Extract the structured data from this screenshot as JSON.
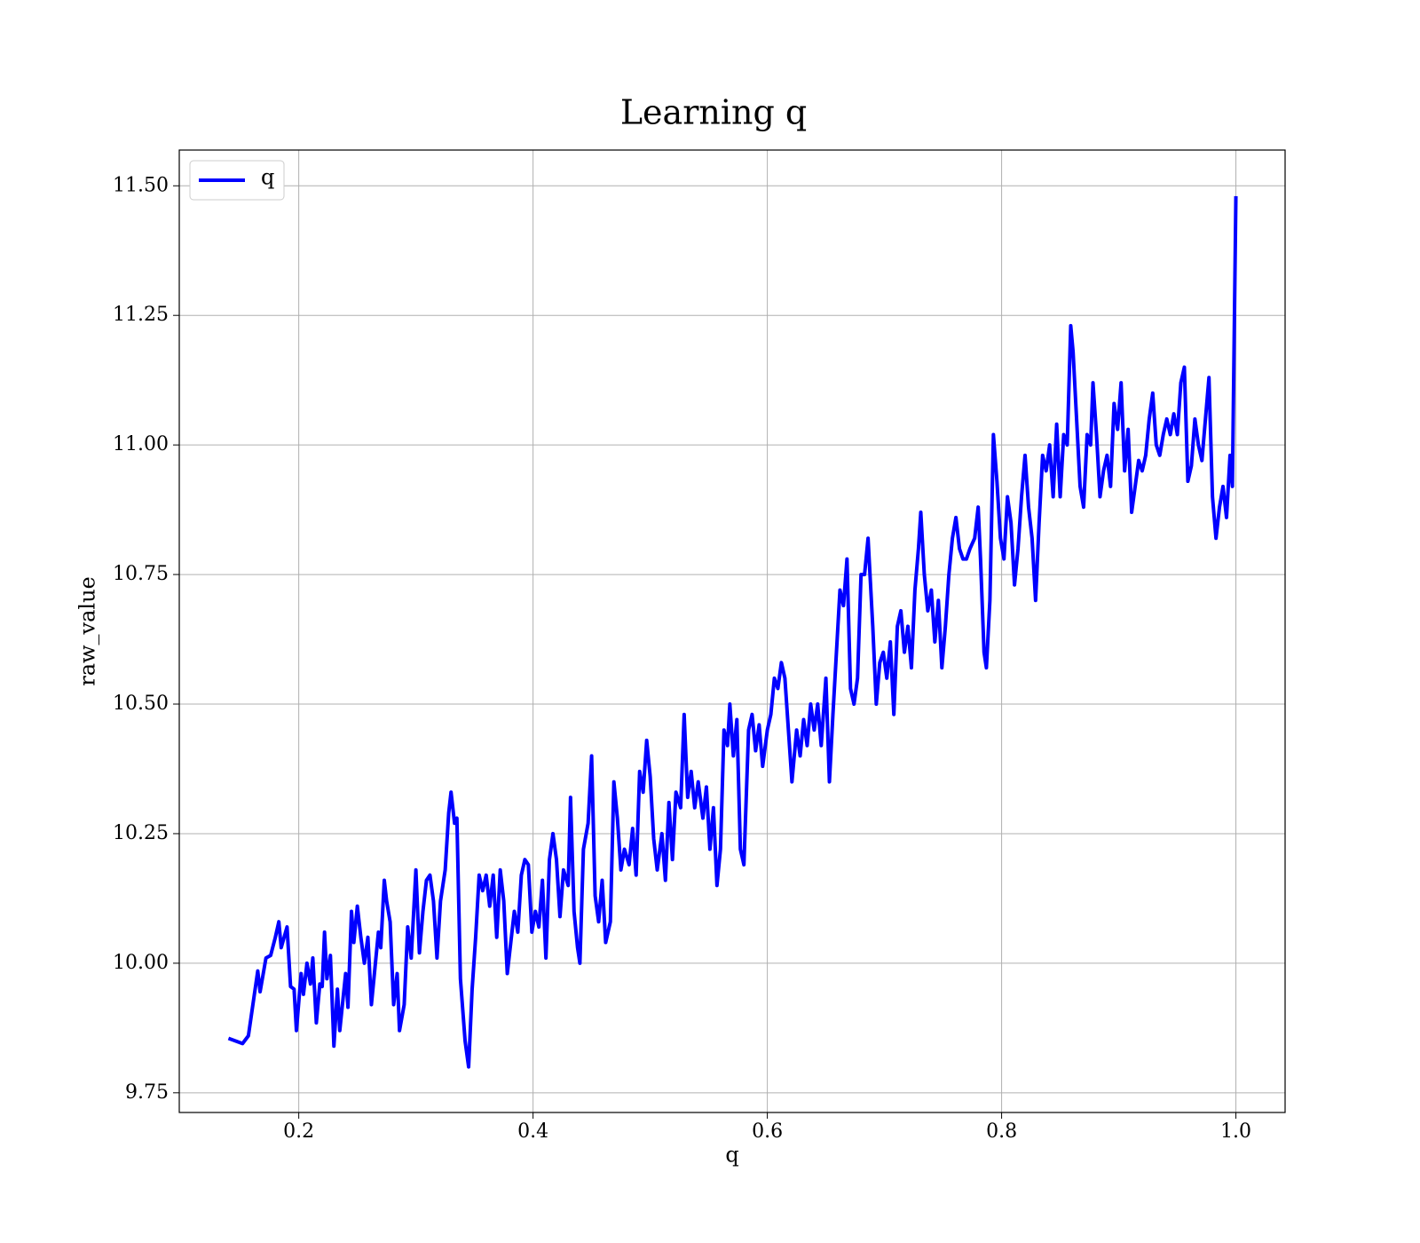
{
  "chart_data": {
    "type": "line",
    "title": "Learning q",
    "x_label": "q",
    "y_label": "raw_value",
    "xlim": [
      0.098,
      1.042
    ],
    "ylim": [
      9.712,
      11.569
    ],
    "xticks": [
      0.2,
      0.4,
      0.6,
      0.8,
      {
        "value": 1,
        "label": "1.0"
      }
    ],
    "yticks": [
      9.75,
      {
        "value": 10,
        "label": "10.00"
      },
      10.25,
      {
        "value": 10.5,
        "label": "10.50"
      },
      10.75,
      {
        "value": 11,
        "label": "11.00"
      },
      11.25,
      {
        "value": 11.5,
        "label": "11.50"
      }
    ],
    "grid": true,
    "legend": "upper left",
    "x": [
      0.14,
      0.152,
      0.157,
      0.165,
      0.167,
      0.172,
      0.176,
      0.18,
      0.183,
      0.185,
      0.19,
      0.193,
      0.196,
      0.198,
      0.202,
      0.204,
      0.207,
      0.21,
      0.212,
      0.215,
      0.218,
      0.22,
      0.222,
      0.224,
      0.227,
      0.23,
      0.233,
      0.235,
      0.24,
      0.242,
      0.245,
      0.247,
      0.25,
      0.253,
      0.256,
      0.259,
      0.262,
      0.265,
      0.268,
      0.27,
      0.273,
      0.275,
      0.278,
      0.281,
      0.284,
      0.286,
      0.29,
      0.293,
      0.296,
      0.3,
      0.303,
      0.306,
      0.309,
      0.312,
      0.315,
      0.318,
      0.321,
      0.325,
      0.328,
      0.33,
      0.333,
      0.335,
      0.338,
      0.342,
      0.345,
      0.348,
      0.351,
      0.354,
      0.357,
      0.36,
      0.363,
      0.366,
      0.369,
      0.372,
      0.375,
      0.378,
      0.381,
      0.384,
      0.387,
      0.39,
      0.393,
      0.396,
      0.399,
      0.402,
      0.405,
      0.408,
      0.411,
      0.414,
      0.417,
      0.42,
      0.423,
      0.426,
      0.43,
      0.432,
      0.435,
      0.438,
      0.44,
      0.443,
      0.447,
      0.45,
      0.453,
      0.456,
      0.459,
      0.462,
      0.466,
      0.469,
      0.472,
      0.475,
      0.478,
      0.482,
      0.485,
      0.488,
      0.491,
      0.494,
      0.497,
      0.5,
      0.503,
      0.506,
      0.51,
      0.513,
      0.516,
      0.519,
      0.522,
      0.526,
      0.529,
      0.532,
      0.535,
      0.538,
      0.541,
      0.545,
      0.548,
      0.551,
      0.554,
      0.557,
      0.56,
      0.563,
      0.566,
      0.568,
      0.571,
      0.574,
      0.577,
      0.58,
      0.584,
      0.587,
      0.59,
      0.593,
      0.596,
      0.6,
      0.603,
      0.606,
      0.609,
      0.612,
      0.615,
      0.618,
      0.621,
      0.625,
      0.628,
      0.631,
      0.634,
      0.637,
      0.64,
      0.643,
      0.646,
      0.65,
      0.653,
      0.656,
      0.659,
      0.662,
      0.665,
      0.668,
      0.671,
      0.674,
      0.677,
      0.68,
      0.683,
      0.686,
      0.69,
      0.693,
      0.696,
      0.699,
      0.702,
      0.705,
      0.708,
      0.711,
      0.714,
      0.717,
      0.72,
      0.723,
      0.726,
      0.729,
      0.731,
      0.734,
      0.737,
      0.74,
      0.743,
      0.746,
      0.749,
      0.752,
      0.755,
      0.758,
      0.761,
      0.764,
      0.767,
      0.77,
      0.773,
      0.777,
      0.78,
      0.782,
      0.785,
      0.787,
      0.79,
      0.793,
      0.796,
      0.799,
      0.802,
      0.805,
      0.808,
      0.811,
      0.814,
      0.817,
      0.82,
      0.823,
      0.826,
      0.829,
      0.832,
      0.835,
      0.838,
      0.841,
      0.844,
      0.847,
      0.85,
      0.853,
      0.856,
      0.859,
      0.861,
      0.864,
      0.867,
      0.87,
      0.873,
      0.876,
      0.878,
      0.881,
      0.884,
      0.887,
      0.89,
      0.893,
      0.896,
      0.899,
      0.902,
      0.905,
      0.908,
      0.911,
      0.914,
      0.917,
      0.92,
      0.923,
      0.926,
      0.929,
      0.932,
      0.935,
      0.938,
      0.941,
      0.944,
      0.947,
      0.95,
      0.953,
      0.956,
      0.959,
      0.962,
      0.965,
      0.968,
      0.971,
      0.974,
      0.977,
      0.98,
      0.983,
      0.986,
      0.989,
      0.992,
      0.995,
      0.997,
      1.0
    ],
    "series": [
      {
        "name": "q",
        "color": "#0000ff",
        "values": [
          9.855,
          9.845,
          9.86,
          9.985,
          9.945,
          10.01,
          10.015,
          10.05,
          10.08,
          10.03,
          10.07,
          9.955,
          9.95,
          9.87,
          9.98,
          9.94,
          10.0,
          9.96,
          10.01,
          9.885,
          9.96,
          9.955,
          10.06,
          9.97,
          10.015,
          9.84,
          9.95,
          9.87,
          9.98,
          9.915,
          10.1,
          10.04,
          10.11,
          10.05,
          10.0,
          10.05,
          9.92,
          9.99,
          10.06,
          10.03,
          10.16,
          10.12,
          10.08,
          9.92,
          9.98,
          9.87,
          9.92,
          10.07,
          10.01,
          10.18,
          10.02,
          10.1,
          10.16,
          10.17,
          10.12,
          10.01,
          10.12,
          10.18,
          10.29,
          10.33,
          10.27,
          10.28,
          9.97,
          9.85,
          9.8,
          9.95,
          10.05,
          10.17,
          10.14,
          10.17,
          10.11,
          10.17,
          10.05,
          10.18,
          10.12,
          9.98,
          10.04,
          10.1,
          10.06,
          10.17,
          10.2,
          10.19,
          10.06,
          10.1,
          10.07,
          10.16,
          10.01,
          10.2,
          10.25,
          10.2,
          10.09,
          10.18,
          10.15,
          10.32,
          10.1,
          10.03,
          10.0,
          10.22,
          10.27,
          10.4,
          10.13,
          10.08,
          10.16,
          10.04,
          10.08,
          10.35,
          10.28,
          10.18,
          10.22,
          10.19,
          10.26,
          10.17,
          10.37,
          10.33,
          10.43,
          10.36,
          10.24,
          10.18,
          10.25,
          10.16,
          10.31,
          10.2,
          10.33,
          10.3,
          10.48,
          10.32,
          10.37,
          10.3,
          10.35,
          10.28,
          10.34,
          10.22,
          10.3,
          10.15,
          10.22,
          10.45,
          10.42,
          10.5,
          10.4,
          10.47,
          10.22,
          10.19,
          10.45,
          10.48,
          10.41,
          10.46,
          10.38,
          10.45,
          10.48,
          10.55,
          10.53,
          10.58,
          10.55,
          10.45,
          10.35,
          10.45,
          10.4,
          10.47,
          10.42,
          10.5,
          10.45,
          10.5,
          10.42,
          10.55,
          10.35,
          10.48,
          10.6,
          10.72,
          10.69,
          10.78,
          10.53,
          10.5,
          10.55,
          10.75,
          10.75,
          10.82,
          10.65,
          10.5,
          10.58,
          10.6,
          10.55,
          10.62,
          10.48,
          10.65,
          10.68,
          10.6,
          10.65,
          10.57,
          10.72,
          10.8,
          10.87,
          10.75,
          10.68,
          10.72,
          10.62,
          10.7,
          10.57,
          10.65,
          10.75,
          10.82,
          10.86,
          10.8,
          10.78,
          10.78,
          10.8,
          10.82,
          10.88,
          10.78,
          10.6,
          10.57,
          10.7,
          11.02,
          10.93,
          10.82,
          10.78,
          10.9,
          10.85,
          10.73,
          10.8,
          10.9,
          10.98,
          10.88,
          10.82,
          10.7,
          10.85,
          10.98,
          10.95,
          11.0,
          10.9,
          11.04,
          10.9,
          11.02,
          11.0,
          11.23,
          11.18,
          11.05,
          10.92,
          10.88,
          11.02,
          11.0,
          11.12,
          11.02,
          10.9,
          10.95,
          10.98,
          10.92,
          11.08,
          11.03,
          11.12,
          10.95,
          11.03,
          10.87,
          10.92,
          10.97,
          10.95,
          10.98,
          11.05,
          11.1,
          11.0,
          10.98,
          11.02,
          11.05,
          11.02,
          11.06,
          11.02,
          11.12,
          11.15,
          10.93,
          10.96,
          11.05,
          11.0,
          10.97,
          11.05,
          11.13,
          10.9,
          10.82,
          10.88,
          10.92,
          10.86,
          10.98,
          10.92,
          11.48
        ]
      }
    ]
  }
}
